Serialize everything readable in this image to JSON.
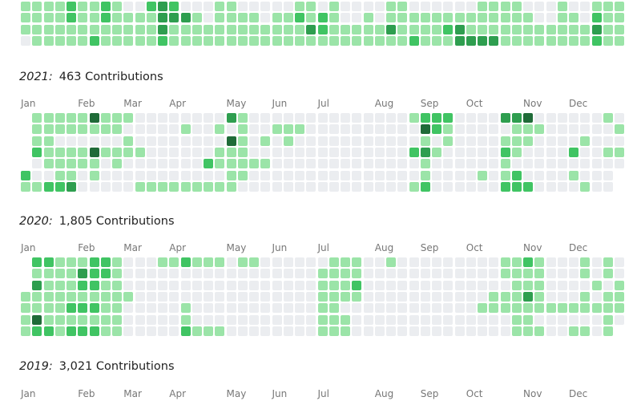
{
  "level_colors": [
    "#ebedf0",
    "#9be4a8",
    "#40c463",
    "#2e9e4f",
    "#1f6b38"
  ],
  "sections": [
    {
      "rows": [
        [
          1,
          1,
          1,
          1,
          2,
          1,
          1,
          2,
          1,
          0,
          0,
          2,
          3,
          2,
          0,
          0,
          0,
          1,
          1,
          0,
          0,
          0,
          0,
          0,
          1,
          1,
          0,
          1,
          0,
          0,
          0,
          0,
          1,
          1,
          0,
          0,
          0,
          0,
          0,
          0,
          1,
          1,
          1,
          1,
          0,
          0,
          0,
          1,
          0,
          0,
          1,
          1,
          1
        ],
        [
          1,
          1,
          1,
          1,
          2,
          1,
          1,
          2,
          1,
          1,
          1,
          1,
          3,
          3,
          3,
          1,
          0,
          1,
          1,
          1,
          1,
          0,
          1,
          1,
          2,
          1,
          2,
          1,
          0,
          0,
          1,
          0,
          1,
          1,
          1,
          1,
          1,
          1,
          1,
          1,
          1,
          1,
          1,
          1,
          1,
          0,
          0,
          1,
          1,
          0,
          2,
          1,
          1
        ],
        [
          1,
          1,
          1,
          1,
          1,
          1,
          1,
          1,
          1,
          1,
          1,
          1,
          3,
          1,
          1,
          1,
          1,
          1,
          1,
          1,
          1,
          1,
          1,
          1,
          1,
          3,
          2,
          1,
          1,
          1,
          1,
          1,
          3,
          1,
          1,
          1,
          1,
          2,
          3,
          1,
          1,
          1,
          1,
          1,
          1,
          1,
          1,
          1,
          1,
          1,
          3,
          1,
          1
        ],
        [
          0,
          1,
          1,
          1,
          1,
          1,
          2,
          1,
          1,
          1,
          1,
          1,
          2,
          1,
          1,
          1,
          1,
          1,
          1,
          1,
          1,
          1,
          1,
          1,
          1,
          1,
          1,
          1,
          1,
          1,
          1,
          1,
          1,
          1,
          2,
          1,
          1,
          1,
          3,
          3,
          3,
          3,
          1,
          1,
          1,
          1,
          1,
          1,
          1,
          1,
          2,
          1,
          1
        ]
      ]
    },
    {
      "year": "2021:",
      "total": "463 Contributions",
      "months": [
        "Jan",
        "Feb",
        "Mar",
        "Apr",
        "May",
        "Jun",
        "Jul",
        "Aug",
        "Sep",
        "Oct",
        "Nov",
        "Dec"
      ],
      "rows": [
        [
          null,
          1,
          1,
          1,
          1,
          1,
          4,
          1,
          1,
          1,
          0,
          0,
          0,
          0,
          0,
          0,
          0,
          0,
          3,
          1,
          0,
          0,
          0,
          0,
          0,
          0,
          0,
          0,
          0,
          0,
          0,
          0,
          0,
          0,
          1,
          2,
          2,
          2,
          0,
          0,
          0,
          0,
          3,
          3,
          4,
          0,
          0,
          0,
          0,
          0,
          0,
          1,
          0
        ],
        [
          null,
          1,
          1,
          1,
          1,
          1,
          1,
          1,
          1,
          0,
          0,
          0,
          0,
          0,
          1,
          0,
          0,
          1,
          0,
          1,
          0,
          0,
          1,
          1,
          1,
          0,
          0,
          0,
          0,
          0,
          0,
          0,
          0,
          0,
          0,
          4,
          2,
          1,
          0,
          0,
          0,
          0,
          0,
          1,
          1,
          1,
          0,
          0,
          0,
          0,
          0,
          0,
          1
        ],
        [
          null,
          1,
          1,
          0,
          0,
          0,
          0,
          0,
          0,
          1,
          0,
          0,
          0,
          0,
          0,
          0,
          0,
          0,
          4,
          1,
          0,
          1,
          0,
          1,
          0,
          0,
          0,
          0,
          0,
          0,
          0,
          0,
          0,
          0,
          0,
          1,
          0,
          1,
          0,
          0,
          0,
          0,
          1,
          1,
          1,
          0,
          0,
          0,
          0,
          1,
          0,
          0,
          0
        ],
        [
          null,
          2,
          1,
          1,
          1,
          1,
          4,
          1,
          1,
          1,
          1,
          0,
          0,
          0,
          0,
          0,
          0,
          1,
          1,
          1,
          0,
          0,
          0,
          0,
          0,
          0,
          0,
          0,
          0,
          0,
          0,
          0,
          0,
          0,
          2,
          3,
          1,
          0,
          0,
          0,
          0,
          0,
          2,
          1,
          0,
          0,
          0,
          0,
          2,
          0,
          0,
          1,
          1
        ],
        [
          null,
          0,
          1,
          1,
          1,
          1,
          1,
          0,
          1,
          0,
          0,
          0,
          0,
          0,
          0,
          0,
          2,
          1,
          1,
          1,
          1,
          1,
          0,
          0,
          0,
          0,
          0,
          0,
          0,
          0,
          0,
          0,
          0,
          0,
          0,
          1,
          0,
          0,
          0,
          0,
          0,
          0,
          1,
          0,
          0,
          0,
          0,
          0,
          0,
          0,
          0,
          0,
          0
        ],
        [
          2,
          0,
          0,
          1,
          1,
          0,
          1,
          0,
          0,
          0,
          0,
          0,
          0,
          0,
          0,
          0,
          0,
          0,
          1,
          1,
          0,
          0,
          0,
          0,
          0,
          0,
          0,
          0,
          0,
          0,
          0,
          0,
          0,
          0,
          0,
          1,
          0,
          0,
          0,
          0,
          1,
          0,
          1,
          2,
          0,
          0,
          0,
          0,
          1,
          0,
          0,
          0,
          null
        ],
        [
          1,
          1,
          2,
          2,
          3,
          0,
          0,
          0,
          0,
          0,
          1,
          1,
          1,
          1,
          1,
          1,
          1,
          1,
          1,
          0,
          0,
          0,
          0,
          0,
          0,
          0,
          0,
          0,
          0,
          0,
          0,
          0,
          0,
          0,
          1,
          2,
          0,
          0,
          0,
          0,
          0,
          0,
          2,
          2,
          2,
          0,
          0,
          0,
          0,
          1,
          0,
          0,
          null
        ]
      ]
    },
    {
      "year": "2020:",
      "total": "1,805 Contributions",
      "months": [
        "Jan",
        "Feb",
        "Mar",
        "Apr",
        "May",
        "Jun",
        "Jul",
        "Aug",
        "Sep",
        "Oct",
        "Nov",
        "Dec"
      ],
      "rows": [
        [
          null,
          2,
          2,
          1,
          1,
          1,
          2,
          2,
          1,
          0,
          0,
          0,
          1,
          1,
          2,
          1,
          1,
          1,
          0,
          1,
          1,
          0,
          0,
          0,
          0,
          0,
          0,
          1,
          1,
          1,
          0,
          0,
          1,
          0,
          0,
          0,
          0,
          0,
          0,
          0,
          0,
          0,
          1,
          1,
          2,
          1,
          0,
          0,
          0,
          1,
          0,
          1,
          0
        ],
        [
          null,
          1,
          1,
          1,
          1,
          3,
          2,
          2,
          1,
          0,
          0,
          0,
          0,
          0,
          0,
          0,
          0,
          0,
          0,
          0,
          0,
          0,
          0,
          0,
          0,
          0,
          1,
          1,
          1,
          1,
          0,
          0,
          0,
          0,
          0,
          0,
          0,
          0,
          0,
          0,
          0,
          0,
          1,
          1,
          1,
          1,
          0,
          0,
          0,
          1,
          0,
          1,
          0
        ],
        [
          null,
          3,
          1,
          1,
          1,
          2,
          2,
          1,
          1,
          0,
          0,
          0,
          0,
          0,
          0,
          0,
          0,
          0,
          0,
          0,
          0,
          0,
          0,
          0,
          0,
          0,
          1,
          1,
          1,
          2,
          0,
          0,
          0,
          0,
          0,
          0,
          0,
          0,
          0,
          0,
          0,
          0,
          0,
          1,
          1,
          1,
          0,
          0,
          0,
          0,
          1,
          0,
          1
        ],
        [
          1,
          1,
          1,
          1,
          1,
          1,
          1,
          1,
          1,
          1,
          0,
          0,
          0,
          0,
          0,
          0,
          0,
          0,
          0,
          0,
          0,
          0,
          0,
          0,
          0,
          0,
          1,
          1,
          1,
          1,
          0,
          0,
          0,
          0,
          0,
          0,
          0,
          0,
          0,
          0,
          0,
          1,
          1,
          1,
          3,
          1,
          0,
          0,
          0,
          1,
          0,
          1,
          1
        ],
        [
          1,
          1,
          1,
          1,
          2,
          2,
          2,
          1,
          1,
          0,
          0,
          0,
          0,
          0,
          1,
          0,
          0,
          0,
          0,
          0,
          0,
          0,
          0,
          0,
          0,
          0,
          1,
          1,
          0,
          0,
          0,
          0,
          0,
          0,
          0,
          0,
          0,
          0,
          0,
          0,
          1,
          1,
          1,
          1,
          1,
          1,
          1,
          1,
          1,
          1,
          1,
          1,
          1
        ],
        [
          1,
          4,
          1,
          1,
          1,
          1,
          1,
          1,
          1,
          0,
          0,
          0,
          0,
          0,
          1,
          0,
          0,
          0,
          0,
          0,
          0,
          0,
          0,
          0,
          0,
          0,
          1,
          1,
          1,
          0,
          0,
          0,
          0,
          0,
          0,
          0,
          0,
          0,
          0,
          0,
          0,
          0,
          0,
          1,
          1,
          0,
          0,
          0,
          0,
          0,
          0,
          1,
          0
        ],
        [
          1,
          2,
          2,
          1,
          2,
          2,
          2,
          1,
          1,
          0,
          0,
          0,
          0,
          0,
          2,
          1,
          1,
          1,
          0,
          0,
          0,
          0,
          0,
          0,
          0,
          0,
          1,
          1,
          1,
          0,
          0,
          0,
          0,
          0,
          0,
          0,
          0,
          0,
          0,
          0,
          0,
          0,
          0,
          1,
          1,
          1,
          0,
          0,
          1,
          1,
          0,
          1,
          null
        ]
      ]
    },
    {
      "year": "2019:",
      "total": "3,021 Contributions",
      "months": [
        "Jan",
        "Feb",
        "Mar",
        "Apr",
        "May",
        "Jun",
        "Jul",
        "Aug",
        "Sep",
        "Oct",
        "Nov",
        "Dec"
      ]
    }
  ]
}
